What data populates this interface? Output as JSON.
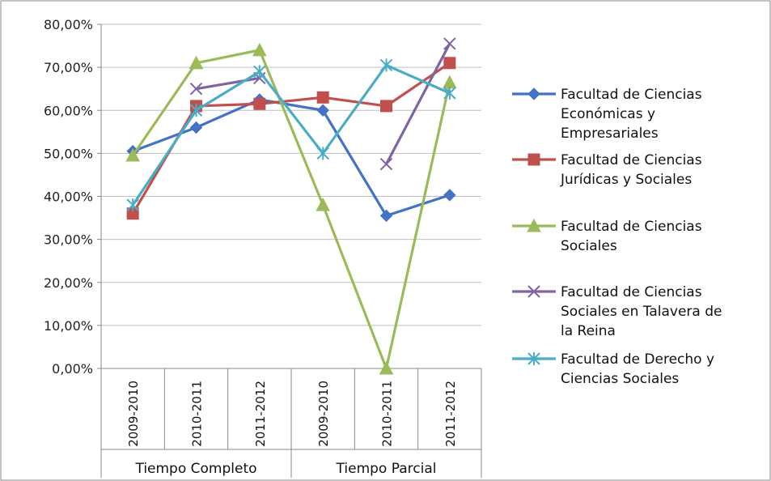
{
  "chart_data": {
    "type": "line",
    "title": "",
    "xlabel": "",
    "ylabel": "",
    "ylim": [
      0,
      80
    ],
    "y_ticks": [
      "0,00%",
      "10,00%",
      "20,00%",
      "30,00%",
      "40,00%",
      "50,00%",
      "60,00%",
      "70,00%",
      "80,00%"
    ],
    "categories": [
      "2009-2010",
      "2010-2011",
      "2011-2012",
      "2009-2010",
      "2010-2011",
      "2011-2012"
    ],
    "groups": [
      {
        "label": "Tiempo Completo",
        "span": 3
      },
      {
        "label": "Tiempo Parcial",
        "span": 3
      }
    ],
    "grid": true,
    "legend_position": "right",
    "series": [
      {
        "name": "Facultad de Ciencias Económicas y Empresariales",
        "legend_lines": [
          "Facultad de Ciencias",
          "Económicas y",
          "Empresariales"
        ],
        "color": "#4472C4",
        "marker": "diamond",
        "values": [
          50.5,
          56.0,
          62.5,
          60.0,
          35.5,
          40.3
        ]
      },
      {
        "name": "Facultad de Ciencias Jurídicas y Sociales",
        "legend_lines": [
          "Facultad de Ciencias",
          "Jurídicas y Sociales"
        ],
        "color": "#C0504D",
        "marker": "square",
        "values": [
          36.0,
          61.0,
          61.5,
          63.0,
          61.0,
          71.0
        ]
      },
      {
        "name": "Facultad de Ciencias Sociales",
        "legend_lines": [
          "Facultad de Ciencias",
          "Sociales"
        ],
        "color": "#9BBB59",
        "marker": "triangle",
        "values": [
          49.5,
          71.0,
          74.0,
          38.0,
          0.0,
          66.5
        ]
      },
      {
        "name": "Facultad de Ciencias Sociales en Talavera de la Reina",
        "legend_lines": [
          "Facultad de Ciencias",
          "Sociales en Talavera de",
          "la Reina"
        ],
        "color": "#8064A2",
        "marker": "x",
        "values": [
          null,
          65.0,
          67.5,
          null,
          47.5,
          75.5
        ]
      },
      {
        "name": "Facultad de Derecho y Ciencias Sociales",
        "legend_lines": [
          "Facultad de Derecho y",
          "Ciencias Sociales"
        ],
        "color": "#4BACC6",
        "marker": "star",
        "values": [
          38.0,
          60.0,
          69.0,
          50.0,
          70.5,
          64.0
        ]
      }
    ]
  }
}
